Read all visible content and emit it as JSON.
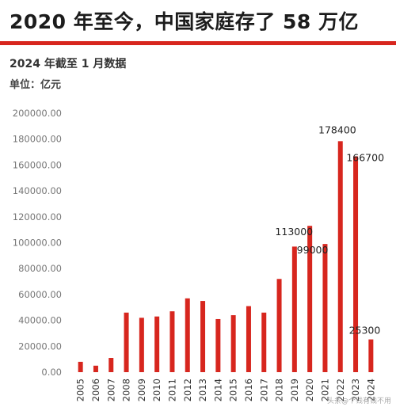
{
  "header": {
    "headline": "2020 年至今，中国家庭存了 58 万亿",
    "subtitle": "2024 年截至 1 月数据",
    "unit": "单位：亿元"
  },
  "watermark": "头条@个钱有钱不用",
  "colors": {
    "bar": "#d7261e",
    "accent": "#d7261e",
    "grid": "#dddddd"
  },
  "chart_data": {
    "type": "bar",
    "categories": [
      "2005",
      "2006",
      "2007",
      "2008",
      "2009",
      "2010",
      "2011",
      "2012",
      "2013",
      "2014",
      "2015",
      "2016",
      "2017",
      "2018",
      "2019",
      "2020",
      "2021",
      "2022",
      "2023",
      "2024"
    ],
    "values": [
      8000,
      5000,
      11000,
      46000,
      42000,
      43000,
      47000,
      57000,
      55000,
      41000,
      44000,
      51000,
      46000,
      72000,
      97000,
      113000,
      99000,
      178400,
      166700,
      25300
    ],
    "data_labels": [
      {
        "category": "2020",
        "text": "113000"
      },
      {
        "category": "2021",
        "text": "99000"
      },
      {
        "category": "2022",
        "text": "178400"
      },
      {
        "category": "2023",
        "text": "166700"
      },
      {
        "category": "2024",
        "text": "25300"
      }
    ],
    "yticks": [
      "0.00",
      "20000.00",
      "40000.00",
      "60000.00",
      "80000.00",
      "100000.00",
      "120000.00",
      "140000.00",
      "160000.00",
      "180000.00",
      "200000.00"
    ],
    "ylim": [
      0,
      200000
    ],
    "grid": false,
    "legend": "none"
  }
}
